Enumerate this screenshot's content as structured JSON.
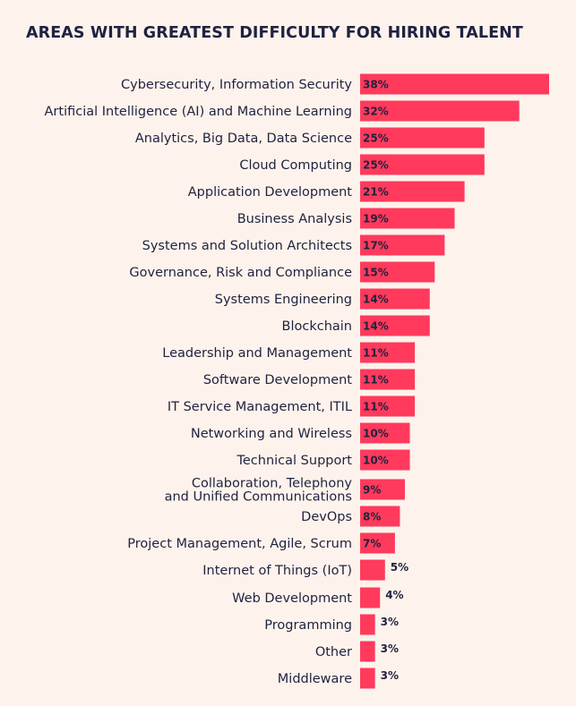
{
  "chart_data": {
    "type": "bar",
    "orientation": "horizontal",
    "title": "AREAS WITH GREATEST DIFFICULTY FOR HIRING TALENT",
    "bar_color": "#ff3a5c",
    "categories": [
      "Cybersecurity, Information Security",
      "Artificial Intelligence (AI) and Machine Learning",
      "Analytics, Big Data, Data Science",
      "Cloud Computing",
      "Application Development",
      "Business Analysis",
      "Systems and Solution Architects",
      "Governance, Risk and Compliance",
      "Systems Engineering",
      "Blockchain",
      "Leadership and Management",
      "Software Development",
      "IT Service Management, ITIL",
      "Networking and Wireless",
      "Technical Support",
      "Collaboration, Telephony\nand Unified Communications",
      "DevOps",
      "Project Management, Agile, Scrum",
      "Internet of Things (IoT)",
      "Web Development",
      "Programming",
      "Other",
      "Middleware"
    ],
    "values": [
      38,
      32,
      25,
      25,
      21,
      19,
      17,
      15,
      14,
      14,
      11,
      11,
      11,
      10,
      10,
      9,
      8,
      7,
      5,
      4,
      3,
      3,
      3
    ],
    "value_labels": [
      "38%",
      "32%",
      "25%",
      "25%",
      "21%",
      "19%",
      "17%",
      "15%",
      "14%",
      "14%",
      "11%",
      "11%",
      "11%",
      "10%",
      "10%",
      "9%",
      "8%",
      "7%",
      "5%",
      "4%",
      "3%",
      "3%",
      "3%"
    ],
    "xlim": [
      0,
      38
    ]
  }
}
